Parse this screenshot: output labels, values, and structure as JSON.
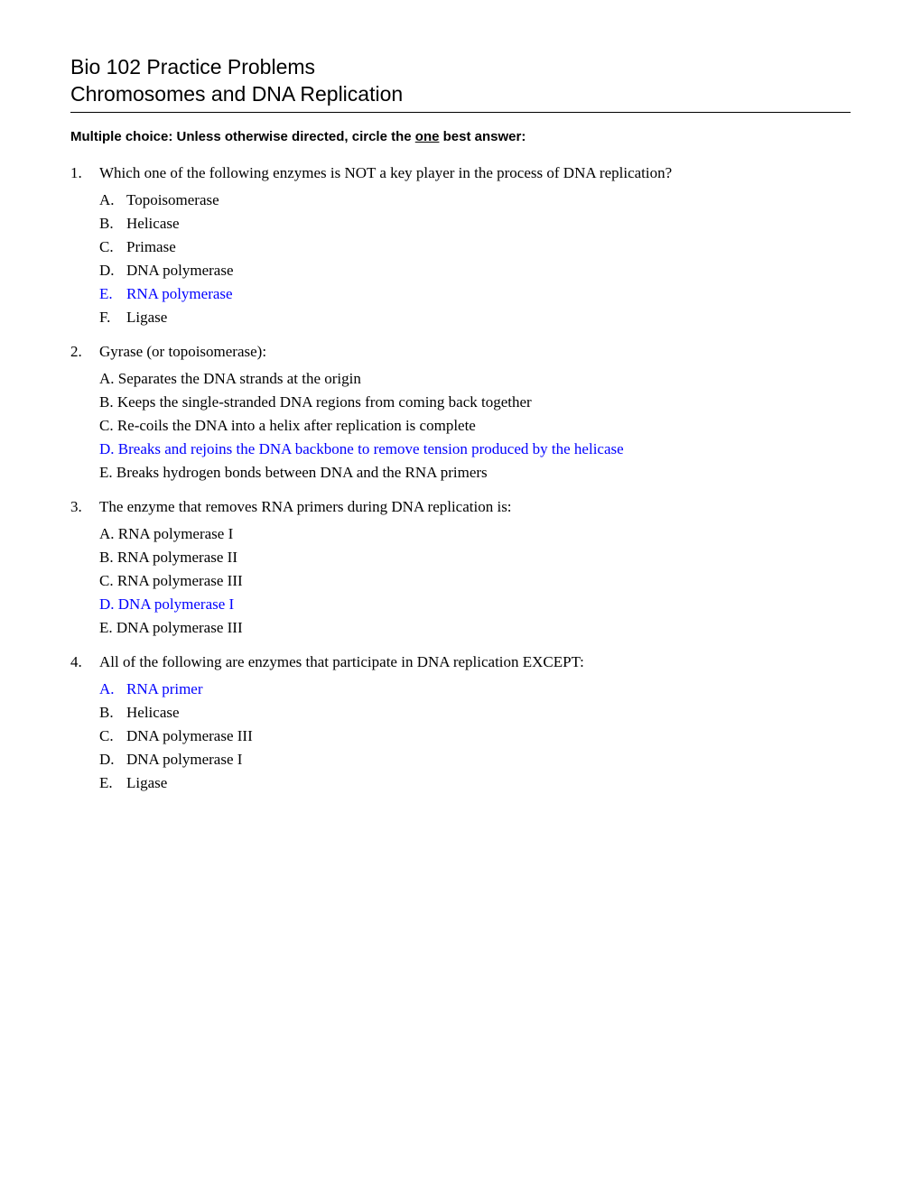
{
  "colors": {
    "text": "#000000",
    "background": "#ffffff",
    "answer": "#0000ff",
    "rule": "#000000"
  },
  "typography": {
    "header_font": "Verdana",
    "header_fontsize": 23,
    "header_weight": 400,
    "instruction_font": "Verdana",
    "instruction_fontsize": 15,
    "instruction_weight": 700,
    "body_font": "Times New Roman",
    "body_fontsize": 17
  },
  "header": {
    "line1": "Bio 102 Practice Problems",
    "line2": "Chromosomes and DNA Replication"
  },
  "instructions": {
    "text_before": "Multiple choice: Unless otherwise directed, circle the ",
    "underlined": "one",
    "text_after": " best answer:"
  },
  "questions": [
    {
      "number": "1.",
      "text": "Which one of the following enzymes is NOT a key player in the process of DNA replication?",
      "option_layout": "letter_dot",
      "options": [
        {
          "letter": "A.",
          "text": "Topoisomerase",
          "answer": false
        },
        {
          "letter": "B.",
          "text": "Helicase",
          "answer": false
        },
        {
          "letter": "C.",
          "text": "Primase",
          "answer": false
        },
        {
          "letter": "D.",
          "text": "DNA polymerase",
          "answer": false
        },
        {
          "letter": "E.",
          "text": "RNA polymerase",
          "answer": true
        },
        {
          "letter": "F.",
          "text": "Ligase",
          "answer": false
        }
      ]
    },
    {
      "number": "2.",
      "text": "Gyrase (or topoisomerase):",
      "option_layout": "flat",
      "options": [
        {
          "full": "A. Separates the DNA strands at the origin",
          "answer": false
        },
        {
          "full": "B. Keeps the single-stranded DNA regions from coming back together",
          "answer": false
        },
        {
          "full": "C. Re-coils the DNA into a helix after replication is complete",
          "answer": false
        },
        {
          "full": "D. Breaks and rejoins the DNA backbone to remove tension produced by the helicase",
          "answer": true
        },
        {
          "full": "E.  Breaks hydrogen bonds between DNA and the RNA primers",
          "answer": false
        }
      ]
    },
    {
      "number": "3.",
      "text": "The enzyme that removes RNA primers during DNA replication is:",
      "option_layout": "flat",
      "options": [
        {
          "full": "A. RNA polymerase I",
          "answer": false
        },
        {
          "full": "B. RNA polymerase II",
          "answer": false
        },
        {
          "full": "C. RNA polymerase III",
          "answer": false
        },
        {
          "full": "D. DNA polymerase I",
          "answer": true
        },
        {
          "full": "E. DNA polymerase III",
          "answer": false
        }
      ]
    },
    {
      "number": "4.",
      "text": "All of the following are enzymes that participate in DNA replication EXCEPT:",
      "option_layout": "letter_dot",
      "options": [
        {
          "letter": "A.",
          "text": "RNA primer",
          "answer": true
        },
        {
          "letter": "B.",
          "text": "Helicase",
          "answer": false
        },
        {
          "letter": "C.",
          "text": "DNA polymerase III",
          "answer": false
        },
        {
          "letter": "D.",
          "text": "DNA polymerase I",
          "answer": false
        },
        {
          "letter": "E.",
          "text": "Ligase",
          "answer": false
        }
      ]
    }
  ]
}
